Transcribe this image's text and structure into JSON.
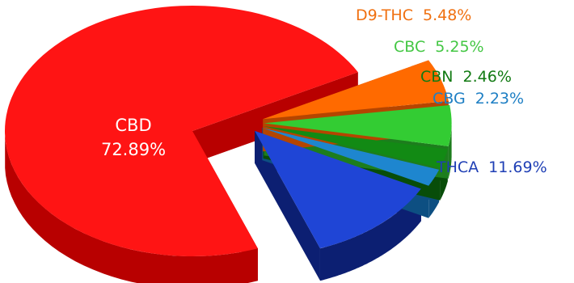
{
  "chart_data": {
    "type": "pie",
    "style": "3d-exploded",
    "title": "",
    "legend": "none",
    "slices": [
      {
        "label": "CBD",
        "value_label": "72.89%",
        "value": 72.89,
        "color": "#ff1414",
        "side": "#b80000",
        "label_color": "#ffffff"
      },
      {
        "label": "THCA",
        "value_label": "11.69%",
        "value": 11.69,
        "color": "#1f45d6",
        "side": "#0c1f72",
        "label_color": "#1f3fb5"
      },
      {
        "label": "CBG",
        "value_label": "2.23%",
        "value": 2.23,
        "color": "#1e86cf",
        "side": "#0d4f82",
        "label_color": "#1e7fc4"
      },
      {
        "label": "CBN",
        "value_label": "2.46%",
        "value": 2.46,
        "color": "#128a14",
        "side": "#084d09",
        "label_color": "#117a12"
      },
      {
        "label": "CBC",
        "value_label": "5.25%",
        "value": 5.25,
        "color": "#33cc33",
        "side": "#1d7d1d",
        "label_color": "#44c744"
      },
      {
        "label": "D9-THC",
        "value_label": "5.48%",
        "value": 5.48,
        "color": "#ff6a00",
        "side": "#b54500",
        "label_color": "#f07010"
      }
    ]
  }
}
